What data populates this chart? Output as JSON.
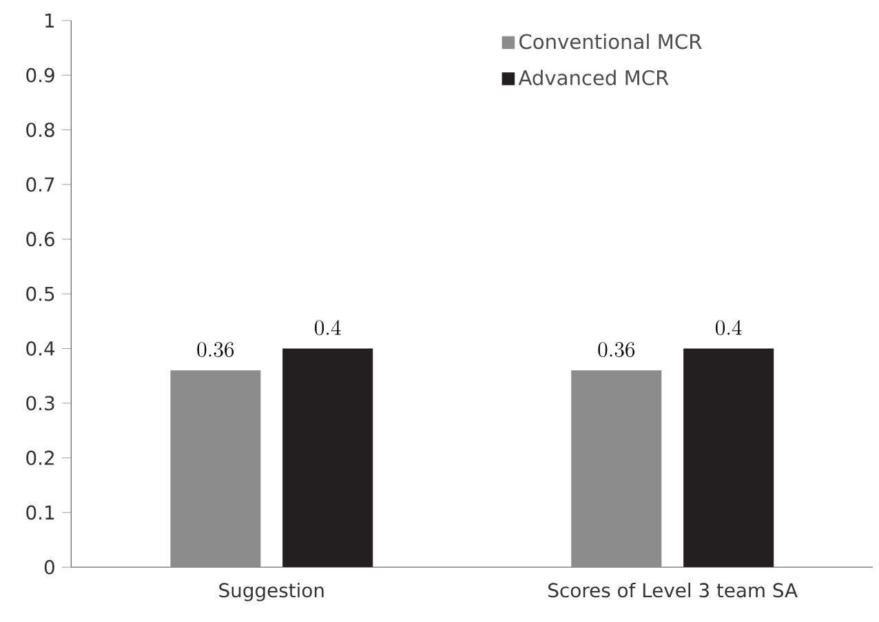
{
  "chart_data": {
    "type": "bar",
    "categories": [
      "Suggestion",
      "Scores of Level 3 team SA"
    ],
    "series": [
      {
        "name": "Conventional MCR",
        "color": "#8c8c8c",
        "values": [
          0.36,
          0.36
        ]
      },
      {
        "name": "Advanced MCR",
        "color": "#231f20",
        "values": [
          0.4,
          0.4
        ]
      }
    ],
    "ylim": [
      0,
      1
    ],
    "yticks": [
      0,
      0.1,
      0.2,
      0.3,
      0.4,
      0.5,
      0.6,
      0.7,
      0.8,
      0.9,
      1
    ],
    "data_labels": true,
    "legend": "top right",
    "grid": false
  }
}
